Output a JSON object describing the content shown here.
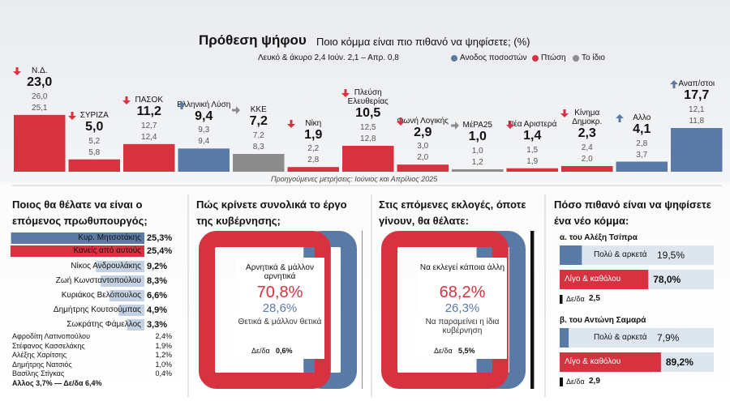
{
  "header": {
    "title": "Πρόθεση ψήφου",
    "subtitle": "Ποιο κόμμα είναι πιο πιθανό να ψηφίσετε; (%)",
    "note": "Λευκό & άκυρο 2,4 Ιούν. 2,1 – Απρ. 0,8"
  },
  "chart_data": [
    {
      "type": "bar",
      "categories": [
        "Ν.Δ.",
        "ΣΥΡΙΖΑ",
        "ΠΑΣΟΚ",
        "Ελληνική Λύση",
        "ΚΚΕ",
        "Νίκη",
        "Πλεύση Ελευθερίας",
        "Φωνή Λογικής",
        "ΜέΡΑ25",
        "Νέα Αριστερά",
        "Κίνημα Δημοκρ.",
        "Αλλο",
        "Αναπ/στοι"
      ],
      "values": [
        23.0,
        5.0,
        11.2,
        9.4,
        7.2,
        1.9,
        10.5,
        2.9,
        1.0,
        1.4,
        2.3,
        4.1,
        17.7
      ],
      "value_labels": [
        "23,0",
        "5,0",
        "11,2",
        "9,4",
        "7,2",
        "1,9",
        "10,5",
        "2,9",
        "1,0",
        "1,4",
        "2,3",
        "4,1",
        "17,7"
      ],
      "previous": [
        {
          "values": [
            26.0,
            5.2,
            12.7,
            9.3,
            7.2,
            2.2,
            12.5,
            3.0,
            1.0,
            1.5,
            2.4,
            2.8,
            12.1
          ],
          "value_labels": [
            "26,0",
            "5,2",
            "12,7",
            "9,3",
            "7,2",
            "2,2",
            "12,5",
            "3,0",
            "1,0",
            "1,5",
            "2,4",
            "2,8",
            "12,1"
          ]
        },
        {
          "values": [
            25.1,
            5.8,
            12.4,
            9.4,
            8.3,
            2.8,
            12.8,
            2.0,
            1.2,
            1.9,
            2.0,
            3.7,
            11.8
          ],
          "value_labels": [
            "25,1",
            "5,8",
            "12,4",
            "9,4",
            "8,3",
            "2,8",
            "12,8",
            "2,0",
            "1,2",
            "1,9",
            "2,0",
            "3,7",
            "11,8"
          ]
        }
      ],
      "trend": [
        "down",
        "down",
        "down",
        "up",
        "same",
        "down",
        "down",
        "down",
        "same",
        "down",
        "down",
        "up",
        "up"
      ],
      "legend": [
        {
          "name": "Ανοδος ποσοστών",
          "trend": "up",
          "color": "#5a7aa6"
        },
        {
          "name": "Πτώση",
          "trend": "down",
          "color": "#d6323f"
        },
        {
          "name": "Το ίδιο",
          "trend": "same",
          "color": "#8c8c8c"
        }
      ],
      "note": "Προηγούμενες μετρήσεις: Ιούνιος και Απρίλιος 2025"
    },
    {
      "type": "hbar",
      "title": "Ποιος θα θέλατε να είναι ο επόμενος πρωθυπουργός;",
      "categories": [
        "Κυρ. Μητσοτάκης",
        "Κανείς από αυτούς",
        "Νίκος Ανδρουλάκης",
        "Ζωή Κωνσταντοπούλου",
        "Κυριάκος Βελόπουλος",
        "Δημήτρης Κουτσούμπας",
        "Σωκράτης Φάμελλος"
      ],
      "values": [
        25.3,
        25.4,
        9.2,
        8.3,
        6.6,
        4.9,
        3.3
      ],
      "value_labels": [
        "25,3%",
        "25,4%",
        "9,2%",
        "8,3%",
        "6,6%",
        "4,9%",
        "3,3%"
      ],
      "colors": [
        "#5a7aa6",
        "#d6323f",
        "#c3d1e2",
        "#c3d1e2",
        "#c3d1e2",
        "#c3d1e2",
        "#c3d1e2"
      ],
      "others": {
        "rows": [
          [
            "Αφροδίτη Λατινοπούλου",
            "2,4%"
          ],
          [
            "Στέφανος Κασσελάκης",
            "1,9%"
          ],
          [
            "Αλέξης Χαρίτσης",
            "1,2%"
          ],
          [
            "Δημήτρης Νατσιός",
            "1,0%"
          ],
          [
            "Βασίλης Στίγκας",
            "0,4%"
          ]
        ],
        "footer": "Αλλος 3,7% — Δε/δα 6,4%"
      }
    },
    {
      "type": "frame",
      "title": "Πώς κρίνετε συνολικά το έργο της κυβέρνησης;",
      "series": [
        {
          "name": "Αρνητικά & μάλλον αρνητικά",
          "color": "#d6323f",
          "value": 70.8,
          "value_label": "70,8%"
        },
        {
          "name": "Θετικά & μάλλον θετικά",
          "color": "#5a7aa6",
          "value": 28.6,
          "value_label": "28,6%"
        }
      ],
      "dk": {
        "name": "Δε/δα",
        "value": 0.6,
        "value_label": "0,6%",
        "color": "#111111"
      }
    },
    {
      "type": "frame",
      "title": "Στις επόμενες εκλογές, όποτε γίνουν, θα θέλατε:",
      "series": [
        {
          "name": "Να εκλεγεί κάποια άλλη",
          "color": "#d6323f",
          "value": 68.2,
          "value_label": "68,2%"
        },
        {
          "name": "Να παραμείνει η ίδια κυβέρνηση",
          "color": "#5a7aa6",
          "value": 26.3,
          "value_label": "26,3%"
        }
      ],
      "dk": {
        "name": "Δε/δα",
        "value": 5.5,
        "value_label": "5,5%",
        "color": "#111111"
      }
    },
    {
      "type": "split",
      "title": "Πόσο πιθανό είναι να ψηφίσετε ένα νέο κόμμα:",
      "groups": [
        {
          "label": "α. του Αλέξη Τσίπρα",
          "series": [
            {
              "name": "Πολύ & αρκετά",
              "color": "#5a7aa6",
              "value": 19.5,
              "value_label": "19,5%"
            },
            {
              "name": "Λίγο & καθόλου",
              "color": "#d6323f",
              "value": 78.0,
              "value_label": "78,0%"
            }
          ],
          "dk": {
            "name": "Δε/δα",
            "value": 2.5,
            "value_label": "2,5",
            "color": "#111111"
          }
        },
        {
          "label": "β. του Αντώνη Σαμαρά",
          "series": [
            {
              "name": "Πολύ & αρκετά",
              "color": "#5a7aa6",
              "value": 7.9,
              "value_label": "7,9%"
            },
            {
              "name": "Λίγο & καθόλου",
              "color": "#d6323f",
              "value": 89.2,
              "value_label": "89,2%"
            }
          ],
          "dk": {
            "name": "Δε/δα",
            "value": 2.9,
            "value_label": "2,9",
            "color": "#111111"
          }
        }
      ]
    }
  ]
}
